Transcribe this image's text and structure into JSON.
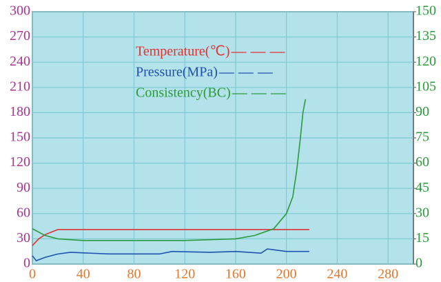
{
  "chart_data": {
    "type": "line",
    "xlim": [
      0,
      300
    ],
    "xticks": [
      0,
      40,
      80,
      120,
      160,
      200,
      240,
      280
    ],
    "ylim": [
      0,
      300
    ],
    "yticks": [
      0,
      30,
      60,
      90,
      120,
      150,
      180,
      210,
      240,
      270,
      300
    ],
    "y2lim": [
      0,
      150
    ],
    "y2ticks": [
      0,
      15,
      30,
      45,
      60,
      75,
      90,
      105,
      120,
      135,
      150
    ],
    "grid": true,
    "series": [
      {
        "name": "Temperature(℃)",
        "color": "#e03030",
        "x": [
          0,
          5,
          10,
          20,
          60,
          100,
          140,
          180,
          218
        ],
        "values": [
          22,
          30,
          35,
          41,
          41,
          41,
          41,
          41,
          41
        ]
      },
      {
        "name": "Pressure(MPa)",
        "color": "#2050b0",
        "x": [
          0,
          3,
          10,
          20,
          30,
          60,
          100,
          110,
          140,
          160,
          180,
          185,
          200,
          218
        ],
        "values": [
          10,
          4,
          8,
          12,
          14,
          12,
          12,
          15,
          14,
          15,
          13,
          18,
          15,
          15
        ]
      },
      {
        "name": "Consistency(BC)",
        "color": "#2a9a3a",
        "axis": "y2",
        "x": [
          0,
          10,
          20,
          40,
          80,
          120,
          160,
          175,
          190,
          200,
          205,
          208,
          211,
          213,
          215
        ],
        "values": [
          21,
          17,
          15,
          14,
          14,
          14,
          15,
          17,
          21,
          30,
          40,
          55,
          75,
          90,
          98
        ]
      }
    ]
  }
}
